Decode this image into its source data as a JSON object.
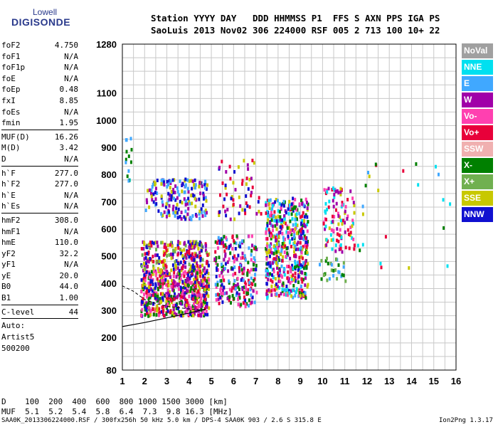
{
  "logo": {
    "line1": "Lowell",
    "line2": "DIGISONDE"
  },
  "header": {
    "line1": "Station YYYY DAY   DDD HHMMSS P1  FFS S AXN PPS IGA PS",
    "line2": "SaoLuis 2013 Nov02 306 224000 RSF 005 2 713 100 10+ 22"
  },
  "params": [
    {
      "name": "foF2",
      "value": "4.750"
    },
    {
      "name": "foF1",
      "value": "N/A"
    },
    {
      "name": "foF1p",
      "value": "N/A"
    },
    {
      "name": "foE",
      "value": "N/A"
    },
    {
      "name": "foEp",
      "value": "0.48"
    },
    {
      "name": "fxI",
      "value": "8.85"
    },
    {
      "name": "foEs",
      "value": "N/A"
    },
    {
      "name": "fmin",
      "value": "1.95"
    },
    {
      "sep": true
    },
    {
      "name": "MUF(D)",
      "value": "16.26"
    },
    {
      "name": "M(D)",
      "value": "3.42"
    },
    {
      "name": "D",
      "value": "N/A"
    },
    {
      "sep": true
    },
    {
      "name": "h`F",
      "value": "277.0"
    },
    {
      "name": "h`F2",
      "value": "277.0"
    },
    {
      "name": "h`E",
      "value": "N/A"
    },
    {
      "name": "h`Es",
      "value": "N/A"
    },
    {
      "sep": true
    },
    {
      "name": "hmF2",
      "value": "308.0"
    },
    {
      "name": "hmF1",
      "value": "N/A"
    },
    {
      "name": "hmE",
      "value": "110.0"
    },
    {
      "name": "yF2",
      "value": "32.2"
    },
    {
      "name": "yF1",
      "value": "N/A"
    },
    {
      "name": "yE",
      "value": "20.0"
    },
    {
      "name": "B0",
      "value": "44.0"
    },
    {
      "name": "B1",
      "value": "1.00"
    },
    {
      "sep": true
    },
    {
      "name": "C-level",
      "value": "44"
    },
    {
      "sep": true
    }
  ],
  "auto": [
    "Auto:",
    "Artist5",
    "500200"
  ],
  "bottom": {
    "d_line": "D    100  200  400  600  800 1000 1500 3000 [km]",
    "muf_line": "MUF  5.1  5.2  5.4  5.8  6.4  7.3  9.8 16.3 [MHz]"
  },
  "footer": {
    "left": "SAA0K_2013306224000.RSF / 300fx256h 50 kHz 5.0 km / DPS-4 SAA0K 903 / 2.6 S 315.8 E",
    "right": "Ion2Png 1.3.17"
  },
  "legend": [
    {
      "label": "NoVal",
      "color": "#a0a0a0"
    },
    {
      "label": "NNE",
      "color": "#00e0f0"
    },
    {
      "label": "E",
      "color": "#40a8ff"
    },
    {
      "label": "W",
      "color": "#a000a8"
    },
    {
      "label": "Vo-",
      "color": "#ff40b0"
    },
    {
      "label": "Vo+",
      "color": "#e8003a"
    },
    {
      "label": "SSW",
      "color": "#f0b0b0"
    },
    {
      "label": "X-",
      "color": "#008000"
    },
    {
      "label": "X+",
      "color": "#70b050"
    },
    {
      "label": "SSE",
      "color": "#c8c800"
    },
    {
      "label": "NNW",
      "color": "#1010d0"
    }
  ],
  "chart_data": {
    "type": "scatter",
    "xlabel": "",
    "ylabel": "",
    "xlim": [
      1,
      16
    ],
    "ylim": [
      80,
      1280
    ],
    "x_ticks": [
      "1",
      "2",
      "3",
      "4",
      "5",
      "6",
      "7",
      "8",
      "9",
      "10",
      "11",
      "12",
      "13",
      "14",
      "15",
      "16"
    ],
    "y_ticks": [
      {
        "value": 80,
        "label": "80"
      },
      {
        "value": 200,
        "label": "200"
      },
      {
        "value": 300,
        "label": "300"
      },
      {
        "value": 400,
        "label": "400"
      },
      {
        "value": 500,
        "label": "500"
      },
      {
        "value": 600,
        "label": "600"
      },
      {
        "value": 700,
        "label": "700"
      },
      {
        "value": 800,
        "label": "800"
      },
      {
        "value": 900,
        "label": "900"
      },
      {
        "value": 1000,
        "label": "1000"
      },
      {
        "value": 1100,
        "label": "1100"
      },
      {
        "value": 1280,
        "label": "1280"
      }
    ],
    "grid": true,
    "profile": [
      [
        1,
        240
      ],
      [
        2,
        255
      ],
      [
        3,
        272
      ],
      [
        4,
        290
      ],
      [
        4.75,
        305
      ]
    ],
    "profile_dashed": [
      [
        1,
        390
      ],
      [
        1.5,
        370
      ],
      [
        2,
        340
      ],
      [
        2.5,
        325
      ],
      [
        3,
        315
      ],
      [
        4,
        305
      ],
      [
        4.75,
        300
      ]
    ],
    "clusters": [
      {
        "x": [
          1.8,
          4.85
        ],
        "y": [
          285,
          460
        ],
        "n": 600,
        "colors": [
          "#e8003a",
          "#ff40b0",
          "#1010d0",
          "#a000a8",
          "#c8c800",
          "#008000"
        ]
      },
      {
        "x": [
          1.8,
          4.85
        ],
        "y": [
          460,
          560
        ],
        "n": 220,
        "colors": [
          "#c8c800",
          "#70b050",
          "#1010d0",
          "#a000a8",
          "#e8003a"
        ]
      },
      {
        "x": [
          2.0,
          4.8
        ],
        "y": [
          640,
          790
        ],
        "n": 180,
        "colors": [
          "#1010d0",
          "#a000a8",
          "#40a8ff",
          "#c8c800"
        ]
      },
      {
        "x": [
          5.1,
          7.0
        ],
        "y": [
          320,
          580
        ],
        "n": 240,
        "colors": [
          "#e8003a",
          "#ff40b0",
          "#1010d0",
          "#40a8ff",
          "#a000a8",
          "#008000"
        ]
      },
      {
        "x": [
          5.2,
          7.2
        ],
        "y": [
          640,
          860
        ],
        "n": 60,
        "colors": [
          "#e8003a",
          "#a000a8",
          "#1010d0",
          "#c8c800"
        ]
      },
      {
        "x": [
          7.4,
          9.3
        ],
        "y": [
          350,
          720
        ],
        "n": 520,
        "colors": [
          "#1010d0",
          "#e8003a",
          "#ff40b0",
          "#40a8ff",
          "#00e0f0",
          "#a000a8",
          "#008000",
          "#c8c800"
        ]
      },
      {
        "x": [
          10.0,
          11.4
        ],
        "y": [
          520,
          760
        ],
        "n": 110,
        "colors": [
          "#00e0f0",
          "#e8003a",
          "#ff40b0",
          "#c8c800",
          "#a000a8"
        ]
      },
      {
        "x": [
          9.8,
          11.0
        ],
        "y": [
          400,
          500
        ],
        "n": 30,
        "colors": [
          "#008000",
          "#40a8ff",
          "#70b050"
        ]
      },
      {
        "x": [
          1.1,
          1.4
        ],
        "y": [
          780,
          940
        ],
        "n": 14,
        "colors": [
          "#40a8ff",
          "#00e0f0",
          "#008000"
        ]
      },
      {
        "x": [
          11.5,
          15.8
        ],
        "y": [
          450,
          870
        ],
        "n": 24,
        "colors": [
          "#00e0f0",
          "#e8003a",
          "#40a8ff",
          "#008000",
          "#c8c800"
        ]
      }
    ]
  }
}
